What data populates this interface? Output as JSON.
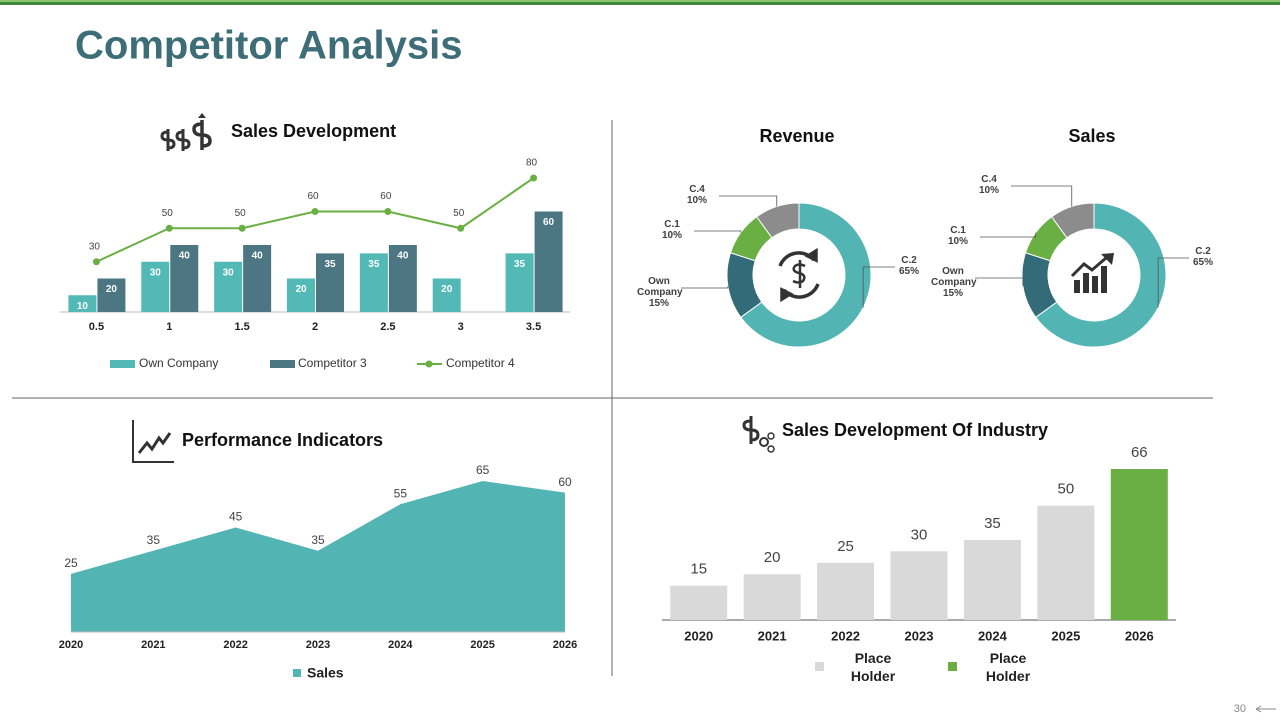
{
  "title": "Competitor Analysis",
  "page_number": "30",
  "chart_data": [
    {
      "type": "bar-line",
      "title": "Sales Development",
      "categories": [
        "0.5",
        "1",
        "1.5",
        "2",
        "2.5",
        "3",
        "3.5"
      ],
      "series": [
        {
          "name": "Own Company",
          "type": "bar",
          "color": "#52b9b6",
          "values": [
            10,
            30,
            30,
            20,
            35,
            20,
            35
          ]
        },
        {
          "name": "Competitor 3",
          "type": "bar",
          "color": "#4d7683",
          "values": [
            20,
            40,
            40,
            35,
            40,
            null,
            60
          ]
        },
        {
          "name": "Competitor 4",
          "type": "line",
          "color": "#6aaf44",
          "values": [
            30,
            50,
            50,
            60,
            60,
            50,
            80
          ]
        }
      ],
      "legend": "bottom"
    },
    {
      "type": "donut",
      "title": "Revenue",
      "categories": [
        "C.2",
        "Own Company",
        "C.1",
        "C.4"
      ],
      "values": [
        65,
        15,
        10,
        10
      ],
      "value_labels": [
        "65%",
        "15%",
        "10%",
        "10%"
      ],
      "colors": [
        "#52b5b3",
        "#336b78",
        "#6aaf44",
        "#8c8c8c"
      ]
    },
    {
      "type": "donut",
      "title": "Sales",
      "categories": [
        "C.2",
        "Own Company",
        "C.1",
        "C.4"
      ],
      "values": [
        65,
        15,
        10,
        10
      ],
      "value_labels": [
        "65%",
        "15%",
        "10%",
        "10%"
      ],
      "colors": [
        "#52b5b3",
        "#336b78",
        "#6aaf44",
        "#8c8c8c"
      ]
    },
    {
      "type": "area",
      "title": "Performance Indicators",
      "x": [
        2020,
        2021,
        2022,
        2023,
        2024,
        2025,
        2026
      ],
      "series": [
        {
          "name": "Sales",
          "color": "#52b5b3",
          "values": [
            25,
            35,
            45,
            35,
            55,
            65,
            60
          ]
        }
      ],
      "legend": "bottom"
    },
    {
      "type": "bar",
      "title": "Sales Development Of Industry",
      "categories": [
        "2020",
        "2021",
        "2022",
        "2023",
        "2024",
        "2025",
        "2026"
      ],
      "values": [
        15,
        20,
        25,
        30,
        35,
        50,
        66
      ],
      "colors": [
        "#d9d9d9",
        "#d9d9d9",
        "#d9d9d9",
        "#d9d9d9",
        "#d9d9d9",
        "#d9d9d9",
        "#6aaf44"
      ],
      "legend": [
        {
          "name": "Place Holder",
          "color": "#d9d9d9"
        },
        {
          "name": "Place Holder",
          "color": "#6aaf44"
        }
      ]
    }
  ]
}
